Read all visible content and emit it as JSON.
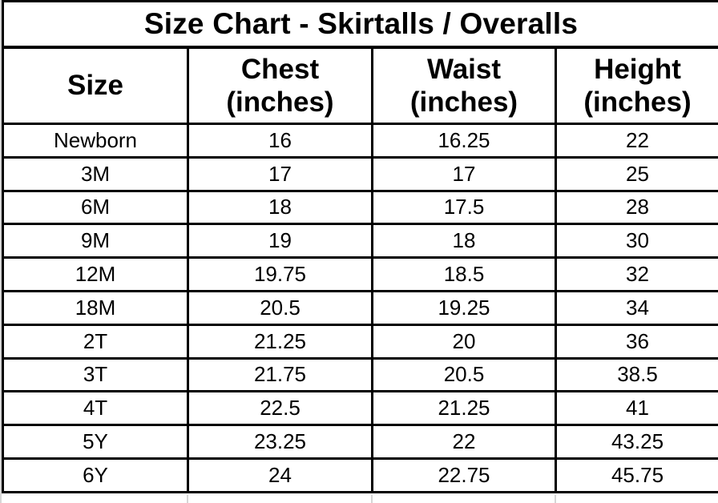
{
  "title": "Size Chart - Skirtalls / Overalls",
  "table": {
    "columns": [
      {
        "label": "Size",
        "sub": ""
      },
      {
        "label": "Chest",
        "sub": "(inches)"
      },
      {
        "label": "Waist",
        "sub": "(inches)"
      },
      {
        "label": "Height",
        "sub": "(inches)"
      }
    ],
    "rows": [
      {
        "size": "Newborn",
        "chest": "16",
        "waist": "16.25",
        "height": "22"
      },
      {
        "size": "3M",
        "chest": "17",
        "waist": "17",
        "height": "25"
      },
      {
        "size": "6M",
        "chest": "18",
        "waist": "17.5",
        "height": "28"
      },
      {
        "size": "9M",
        "chest": "19",
        "waist": "18",
        "height": "30"
      },
      {
        "size": "12M",
        "chest": "19.75",
        "waist": "18.5",
        "height": "32"
      },
      {
        "size": "18M",
        "chest": "20.5",
        "waist": "19.25",
        "height": "34"
      },
      {
        "size": "2T",
        "chest": "21.25",
        "waist": "20",
        "height": "36"
      },
      {
        "size": "3T",
        "chest": "21.75",
        "waist": "20.5",
        "height": "38.5"
      },
      {
        "size": "4T",
        "chest": "22.5",
        "waist": "21.25",
        "height": "41"
      },
      {
        "size": "5Y",
        "chest": "23.25",
        "waist": "22",
        "height": "43.25"
      },
      {
        "size": "6Y",
        "chest": "24",
        "waist": "22.75",
        "height": "45.75"
      }
    ]
  },
  "colors": {
    "border": "#000000",
    "text": "#000000",
    "background": "#ffffff",
    "gridline": "#d6d6d6"
  }
}
